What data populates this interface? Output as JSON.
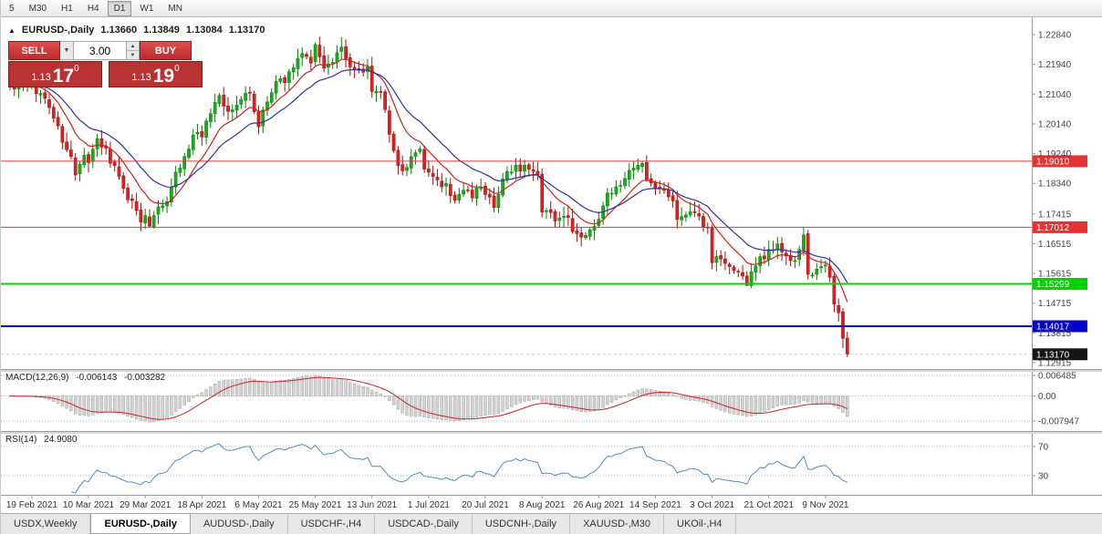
{
  "toolbar": {
    "timeframes": [
      "5",
      "M30",
      "H1",
      "H4",
      "D1",
      "W1",
      "MN"
    ],
    "active": "D1"
  },
  "legend": {
    "collapse_arrow": "▲",
    "symbol": "EURUSD-,Daily",
    "open": "1.13660",
    "high": "1.13849",
    "low": "1.13084",
    "close": "1.13170"
  },
  "one_click": {
    "sell_label": "SELL",
    "buy_label": "BUY",
    "volume": "3.00",
    "sell_price": {
      "base": "1.13",
      "big": "17",
      "sup": "0"
    },
    "buy_price": {
      "base": "1.13",
      "big": "19",
      "sup": "0"
    }
  },
  "indicators": {
    "macd": {
      "name": "MACD(12,26,9)",
      "value_main": "-0.006143",
      "value_signal": "-0.003282"
    },
    "rsi": {
      "name": "RSI(14)",
      "value": "24.9080"
    }
  },
  "tabs": {
    "items": [
      "USDX,Weekly",
      "EURUSD-,Daily",
      "AUDUSD-,Daily",
      "USDCHF-,H4",
      "USDCAD-,Daily",
      "USDCNH-,Daily",
      "XAUUSD-,M30",
      "UKOil-,H4"
    ],
    "active_index": 1
  },
  "chart_data": {
    "type": "candlestick",
    "title": "EURUSD-,Daily",
    "timeframe": "Daily",
    "last_candle_ohlc": [
      1.1366,
      1.13849,
      1.13084,
      1.1317
    ],
    "price_axis_ticks": [
      "1.22840",
      "1.21940",
      "1.21040",
      "1.20140",
      "1.19240",
      "1.18340",
      "1.17415",
      "1.16515",
      "1.15615",
      "1.14715",
      "1.13815",
      "1.12915"
    ],
    "x_labels": [
      "19 Feb 2021",
      "10 Mar 2021",
      "29 Mar 2021",
      "18 Apr 2021",
      "6 May 2021",
      "25 May 2021",
      "13 Jun 2021",
      "1 Jul 2021",
      "20 Jul 2021",
      "8 Aug 2021",
      "26 Aug 2021",
      "14 Sep 2021",
      "3 Oct 2021",
      "21 Oct 2021",
      "9 Nov 2021"
    ],
    "first_label_index": 5,
    "label_every": 13,
    "candle_count": 193,
    "close_anchors": [
      [
        0,
        1.2135
      ],
      [
        2,
        1.2125
      ],
      [
        4,
        1.2122
      ],
      [
        5,
        1.212
      ],
      [
        7,
        1.2105
      ],
      [
        9,
        1.2078
      ],
      [
        11,
        1.2
      ],
      [
        13,
        1.193
      ],
      [
        15,
        1.1872
      ],
      [
        17,
        1.1905
      ],
      [
        18,
        1.1896
      ],
      [
        20,
        1.1975
      ],
      [
        22,
        1.1925
      ],
      [
        24,
        1.1878
      ],
      [
        26,
        1.1812
      ],
      [
        28,
        1.1778
      ],
      [
        30,
        1.1732
      ],
      [
        32,
        1.1715
      ],
      [
        34,
        1.1772
      ],
      [
        36,
        1.1782
      ],
      [
        38,
        1.1868
      ],
      [
        40,
        1.191
      ],
      [
        42,
        1.1978
      ],
      [
        44,
        1.1985
      ],
      [
        46,
        1.2035
      ],
      [
        48,
        1.2092
      ],
      [
        50,
        1.2042
      ],
      [
        52,
        1.2065
      ],
      [
        54,
        1.2122
      ],
      [
        56,
        1.2062
      ],
      [
        57,
        1.2012
      ],
      [
        59,
        1.208
      ],
      [
        61,
        1.2142
      ],
      [
        63,
        1.215
      ],
      [
        65,
        1.2198
      ],
      [
        67,
        1.2222
      ],
      [
        69,
        1.2212
      ],
      [
        70,
        1.2252
      ],
      [
        72,
        1.2192
      ],
      [
        74,
        1.2198
      ],
      [
        76,
        1.2245
      ],
      [
        78,
        1.219
      ],
      [
        80,
        1.2172
      ],
      [
        82,
        1.2182
      ],
      [
        83,
        1.2122
      ],
      [
        85,
        1.2105
      ],
      [
        87,
        1.1995
      ],
      [
        88,
        1.1922
      ],
      [
        90,
        1.1868
      ],
      [
        92,
        1.1922
      ],
      [
        94,
        1.1932
      ],
      [
        96,
        1.1852
      ],
      [
        98,
        1.1848
      ],
      [
        100,
        1.1822
      ],
      [
        102,
        1.1792
      ],
      [
        104,
        1.18
      ],
      [
        106,
        1.1795
      ],
      [
        108,
        1.1822
      ],
      [
        109,
        1.1812
      ],
      [
        111,
        1.1772
      ],
      [
        113,
        1.1848
      ],
      [
        115,
        1.1868
      ],
      [
        117,
        1.1885
      ],
      [
        119,
        1.1892
      ],
      [
        121,
        1.1868
      ],
      [
        122,
        1.1762
      ],
      [
        124,
        1.1742
      ],
      [
        126,
        1.173
      ],
      [
        128,
        1.1716
      ],
      [
        130,
        1.1682
      ],
      [
        132,
        1.1672
      ],
      [
        134,
        1.17
      ],
      [
        135,
        1.1728
      ],
      [
        137,
        1.1792
      ],
      [
        139,
        1.1808
      ],
      [
        141,
        1.1838
      ],
      [
        143,
        1.1878
      ],
      [
        145,
        1.1882
      ],
      [
        147,
        1.1838
      ],
      [
        148,
        1.1812
      ],
      [
        149,
        1.1815
      ],
      [
        151,
        1.1805
      ],
      [
        153,
        1.173
      ],
      [
        155,
        1.1725
      ],
      [
        157,
        1.174
      ],
      [
        159,
        1.17
      ],
      [
        160,
        1.1685
      ],
      [
        161,
        1.1598
      ],
      [
        163,
        1.1602
      ],
      [
        165,
        1.1585
      ],
      [
        167,
        1.1562
      ],
      [
        169,
        1.1532
      ],
      [
        171,
        1.1594
      ],
      [
        173,
        1.1602
      ],
      [
        174,
        1.1638
      ],
      [
        176,
        1.165
      ],
      [
        178,
        1.1602
      ],
      [
        180,
        1.1606
      ],
      [
        181,
        1.1622
      ],
      [
        182,
        1.1678
      ],
      [
        183,
        1.1562
      ],
      [
        185,
        1.158
      ],
      [
        187,
        1.1592
      ],
      [
        188,
        1.1552
      ],
      [
        189,
        1.1472
      ],
      [
        190,
        1.1442
      ],
      [
        191,
        1.1368
      ],
      [
        192,
        1.1317
      ]
    ],
    "overrides": {
      "32": {
        "low": 1.1702
      },
      "132": {
        "low": 1.1664
      },
      "144": {
        "high": 1.1909
      },
      "169": {
        "low": 1.1524
      },
      "192": {
        "open": 1.1366,
        "high": 1.13849,
        "low": 1.13084,
        "close": 1.1317
      }
    },
    "hlines": [
      {
        "price": 1.1901,
        "label": "1.19010",
        "color": "#e23434",
        "text": "#ffffff",
        "width": 1
      },
      {
        "price": 1.17012,
        "label": "1.17012",
        "color": "#e23434",
        "text": "#ffffff",
        "width": 1
      },
      {
        "price": 1.15299,
        "label": "1.15299",
        "color": "#00d200",
        "text": "#ffffff",
        "width": 2
      },
      {
        "price": 1.14017,
        "label": "1.14017",
        "color": "#0202c8",
        "text": "#ffffff",
        "width": 2
      }
    ],
    "current_price": {
      "value": 1.1317,
      "label": "1.13170",
      "box_color": "#161616",
      "text": "#ffffff"
    },
    "moving_averages": [
      {
        "period": 10,
        "color": "#cc2222"
      },
      {
        "period": 20,
        "color": "#31319b"
      }
    ],
    "macd": {
      "fast": 12,
      "slow": 26,
      "signal": 9,
      "axis_ticks": [
        "0.006485",
        "0.00",
        "-0.007947"
      ]
    },
    "rsi": {
      "period": 14,
      "levels": [
        "70",
        "30"
      ]
    },
    "colors": {
      "up": "#1cab1c",
      "up_stroke": "#0b7d0b",
      "down": "#d92121",
      "down_stroke": "#a31010",
      "macd_bar": "#d2d2d2",
      "macd_bar_stroke": "#9b9b9b",
      "macd_signal": "#cc2222",
      "rsi_line": "#4f8fc0",
      "axis_text": "#444444",
      "grid_dotted": "#b5b5b5",
      "axis_line": "#9a9a9a"
    }
  }
}
